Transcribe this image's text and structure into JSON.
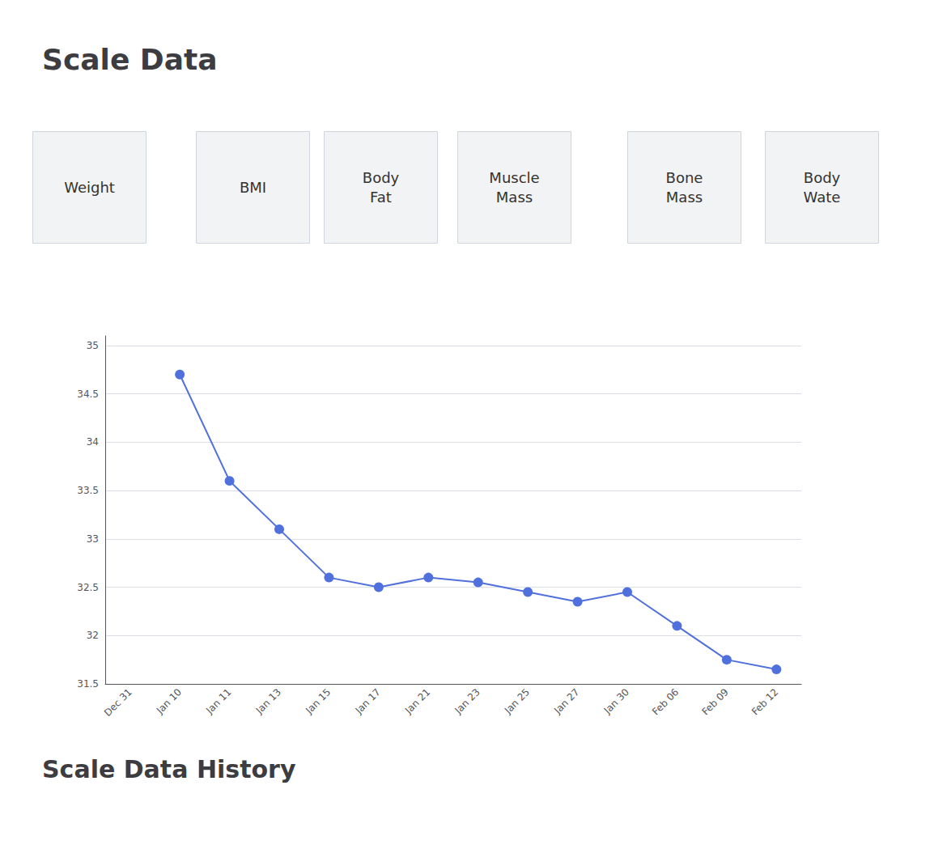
{
  "chart_data": {
    "type": "line",
    "title": "Scale Data",
    "subtitle": "Scale Data History",
    "annotations": [
      "Weight",
      "BMI",
      "Body\nFat",
      "Muscle\nMass",
      "Bone\nMass",
      "Body\nWate"
    ],
    "categories": [
      "Dec 31",
      "Jan 10",
      "Jan 11",
      "Jan 13",
      "Jan 15",
      "Jan 17",
      "Jan 21",
      "Jan 23",
      "Jan 25",
      "Jan 27",
      "Jan 30",
      "Feb 06",
      "Feb 09",
      "Feb 12"
    ],
    "values": [
      null,
      34.7,
      33.6,
      33.1,
      32.6,
      32.5,
      32.6,
      32.55,
      32.45,
      32.35,
      32.45,
      32.1,
      31.75,
      31.65
    ],
    "ylim": [
      31.5,
      35.1
    ],
    "yticks": [
      31.5,
      32,
      32.5,
      33,
      33.5,
      34,
      34.5,
      35
    ],
    "grid": true,
    "marker": "circle"
  }
}
